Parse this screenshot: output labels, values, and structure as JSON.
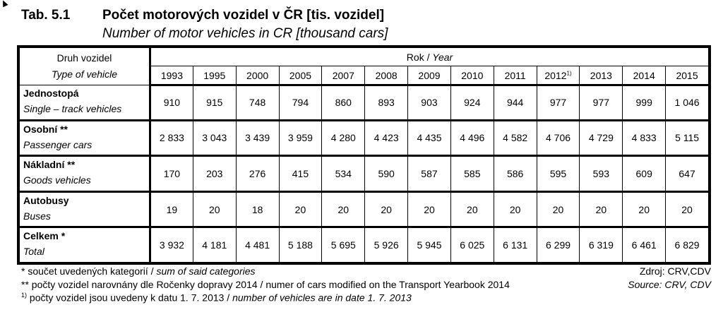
{
  "title": {
    "number": "Tab. 5.1",
    "cz": "Počet motorových vozidel v ČR [tis. vozidel]",
    "en": "Number of motor vehicles in CR [thousand cars]"
  },
  "header": {
    "type_cz": "Druh vozidel",
    "type_en": "Type of vehicle",
    "year_cz": "Rok /",
    "year_en": "Year"
  },
  "years": [
    "1993",
    "1995",
    "2000",
    "2005",
    "2007",
    "2008",
    "2009",
    "2010",
    "2011",
    "2012",
    "2013",
    "2014",
    "2015"
  ],
  "year_note": "1)",
  "rows": [
    {
      "cz": "Jednostopá",
      "en": "Single – track vehicles",
      "values": [
        "910",
        "915",
        "748",
        "794",
        "860",
        "893",
        "903",
        "924",
        "944",
        "977",
        "977",
        "999",
        "1 046"
      ]
    },
    {
      "cz": "Osobní **",
      "en": "Passenger cars",
      "values": [
        "2 833",
        "3 043",
        "3 439",
        "3 959",
        "4 280",
        "4 423",
        "4 435",
        "4 496",
        "4 582",
        "4 706",
        "4 729",
        "4 833",
        "5 115"
      ]
    },
    {
      "cz": "Nákladní **",
      "en": "Goods vehicles",
      "values": [
        "170",
        "203",
        "276",
        "415",
        "534",
        "590",
        "587",
        "585",
        "586",
        "595",
        "593",
        "609",
        "647"
      ]
    },
    {
      "cz": "Autobusy",
      "en": "Buses",
      "values": [
        "19",
        "20",
        "18",
        "20",
        "20",
        "20",
        "20",
        "20",
        "20",
        "20",
        "20",
        "20",
        "20"
      ]
    },
    {
      "cz": "Celkem *",
      "en": "Total",
      "values": [
        "3 932",
        "4 181",
        "4 481",
        "5 188",
        "5 695",
        "5 926",
        "5 945",
        "6 025",
        "6 131",
        "6 299",
        "6 319",
        "6 461",
        "6 829"
      ]
    }
  ],
  "footnotes": {
    "f1_cz": "* součet uvedených kategorií /",
    "f1_en": "sum of said categories",
    "f2": "** počty vozidel narovnány dle Ročenky dopravy 2014 / numer of cars modified on the Transport Yearbook 2014",
    "f3_mark": "1)",
    "f3_cz": "počty vozidel jsou uvedeny k datu 1. 7. 2013 /",
    "f3_en": "number of vehicles are in date 1. 7. 2013"
  },
  "source": {
    "cz": "Zdroj: CRV,CDV",
    "en": "Source: CRV, CDV"
  }
}
